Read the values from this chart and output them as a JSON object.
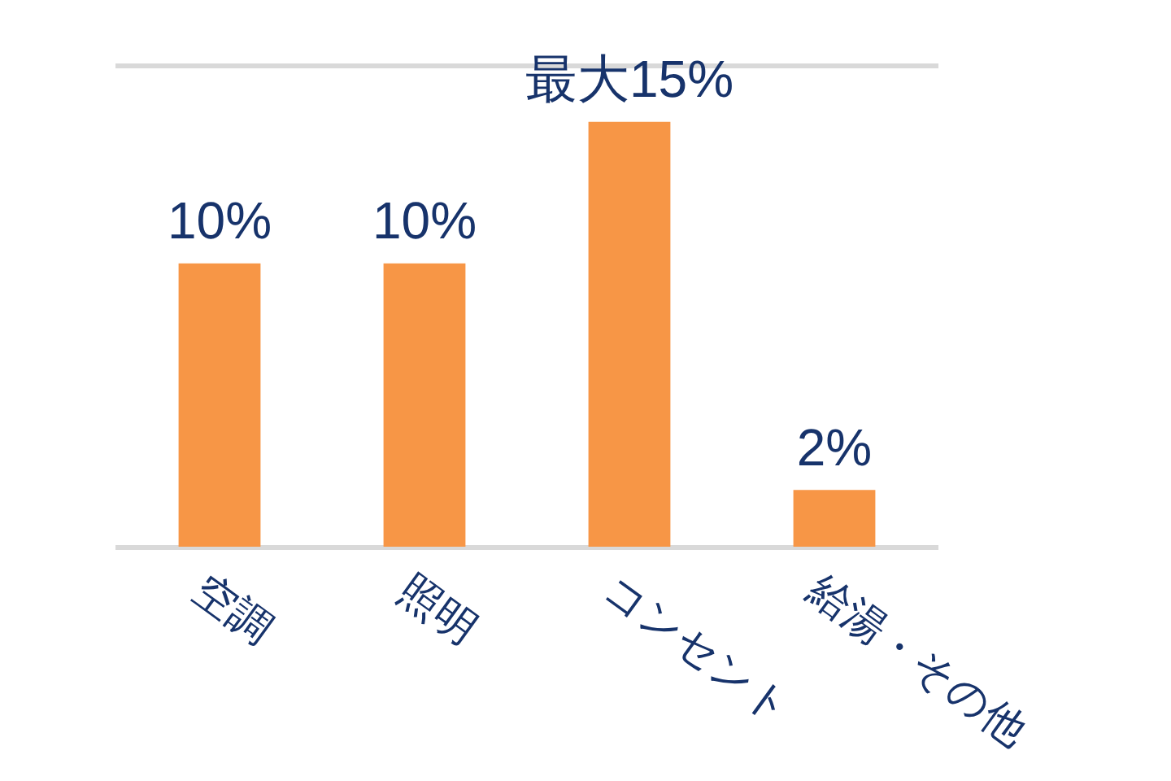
{
  "chart_data": {
    "type": "bar",
    "categories": [
      "空調",
      "照明",
      "コンセント",
      "給湯・その他"
    ],
    "values": [
      10,
      10,
      15,
      2
    ],
    "value_labels": [
      "10%",
      "10%",
      "最大15%",
      "2%"
    ],
    "color": "#f79646",
    "ylim": [
      0,
      17
    ],
    "tick_labels": "x",
    "legend": false
  }
}
